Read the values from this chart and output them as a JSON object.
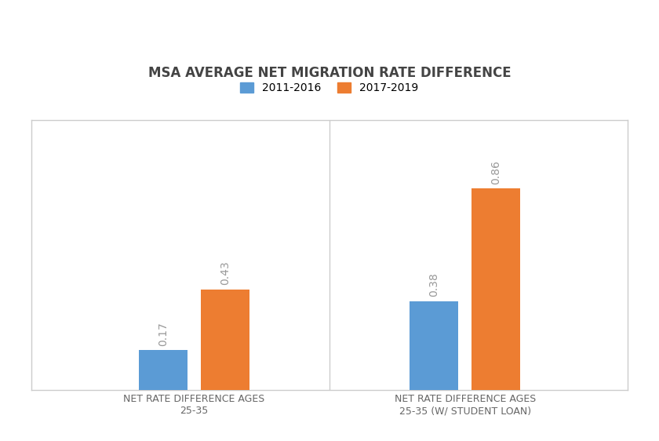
{
  "title": "MSA AVERAGE NET MIGRATION RATE DIFFERENCE",
  "categories": [
    "NET RATE DIFFERENCE AGES\n25-35",
    "NET RATE DIFFERENCE AGES\n25-35 (W/ STUDENT LOAN)"
  ],
  "series": {
    "2011-2016": [
      0.17,
      0.38
    ],
    "2017-2019": [
      0.43,
      0.86
    ]
  },
  "bar_colors": {
    "2011-2016": "#5B9BD5",
    "2017-2019": "#ED7D31"
  },
  "ylim": [
    0,
    1.15
  ],
  "bar_width": 0.18,
  "title_fontsize": 12,
  "label_fontsize": 10,
  "tick_label_fontsize": 9,
  "value_label_fontsize": 10,
  "background_color": "#FFFFFF",
  "panel_bg": "#FFFFFF",
  "legend_labels": [
    "2011-2016",
    "2017-2019"
  ],
  "value_label_color": "#999999",
  "spine_color": "#CCCCCC",
  "tick_label_color": "#666666"
}
